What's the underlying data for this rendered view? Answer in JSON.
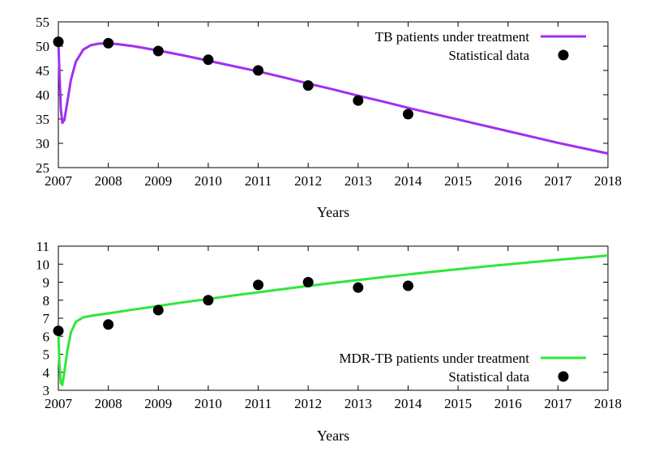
{
  "chart_data": [
    {
      "type": "line",
      "xlabel": "Years",
      "ylabel": "",
      "xlim": [
        2007,
        2018
      ],
      "ylim": [
        25,
        55
      ],
      "xticks": [
        "2007",
        "2008",
        "2009",
        "2010",
        "2011",
        "2012",
        "2013",
        "2014",
        "2015",
        "2016",
        "2017",
        "2018"
      ],
      "yticks": [
        "25",
        "30",
        "35",
        "40",
        "45",
        "50",
        "55"
      ],
      "grid": false,
      "legend_position": "top-right",
      "series": [
        {
          "name": "TB patients under treatment",
          "kind": "line",
          "color": "#a02ff0",
          "x": [
            2007,
            2007.02,
            2007.05,
            2007.08,
            2007.12,
            2007.18,
            2007.25,
            2007.35,
            2007.5,
            2007.65,
            2007.8,
            2008,
            2008.2,
            2008.5,
            2009,
            2009.5,
            2010,
            2010.5,
            2011,
            2011.5,
            2012,
            2012.5,
            2013,
            2013.5,
            2014,
            2014.5,
            2015,
            2015.5,
            2016,
            2016.5,
            2017,
            2017.5,
            2018
          ],
          "y": [
            51.0,
            45.0,
            37.0,
            34.2,
            34.8,
            38.5,
            43.0,
            46.8,
            49.3,
            50.2,
            50.5,
            50.6,
            50.4,
            50.0,
            49.1,
            48.1,
            47.0,
            45.9,
            44.8,
            43.6,
            42.3,
            41.1,
            39.8,
            38.6,
            37.3,
            36.1,
            34.9,
            33.7,
            32.5,
            31.3,
            30.1,
            29.0,
            27.9
          ]
        },
        {
          "name": "Statistical data",
          "kind": "points",
          "color": "#000000",
          "x": [
            2007,
            2008,
            2009,
            2010,
            2011,
            2012,
            2013,
            2014
          ],
          "y": [
            50.9,
            50.6,
            49.0,
            47.2,
            45.0,
            41.9,
            38.8,
            36.0
          ]
        }
      ]
    },
    {
      "type": "line",
      "xlabel": "Years",
      "ylabel": "",
      "xlim": [
        2007,
        2018
      ],
      "ylim": [
        3,
        11
      ],
      "xticks": [
        "2007",
        "2008",
        "2009",
        "2010",
        "2011",
        "2012",
        "2013",
        "2014",
        "2015",
        "2016",
        "2017",
        "2018"
      ],
      "yticks": [
        "3",
        "4",
        "5",
        "6",
        "7",
        "8",
        "9",
        "10",
        "11"
      ],
      "grid": false,
      "legend_position": "bottom-right",
      "series": [
        {
          "name": "MDR-TB patients under treatment",
          "kind": "line",
          "color": "#2ee83c",
          "x": [
            2007,
            2007.02,
            2007.05,
            2007.08,
            2007.12,
            2007.18,
            2007.25,
            2007.35,
            2007.5,
            2007.7,
            2008,
            2008.5,
            2009,
            2009.5,
            2010,
            2010.5,
            2011,
            2011.5,
            2012,
            2012.5,
            2013,
            2013.5,
            2014,
            2014.5,
            2015,
            2015.5,
            2016,
            2016.5,
            2017,
            2017.5,
            2018
          ],
          "y": [
            6.3,
            4.5,
            3.4,
            3.3,
            4.0,
            5.2,
            6.2,
            6.8,
            7.05,
            7.15,
            7.27,
            7.48,
            7.68,
            7.88,
            8.07,
            8.26,
            8.44,
            8.62,
            8.79,
            8.96,
            9.12,
            9.28,
            9.43,
            9.58,
            9.72,
            9.86,
            9.99,
            10.12,
            10.24,
            10.36,
            10.48
          ]
        },
        {
          "name": "Statistical data",
          "kind": "points",
          "color": "#000000",
          "x": [
            2007,
            2008,
            2009,
            2010,
            2011,
            2012,
            2013,
            2014
          ],
          "y": [
            6.3,
            6.65,
            7.45,
            8.0,
            8.85,
            9.0,
            8.7,
            8.8
          ]
        }
      ]
    }
  ]
}
